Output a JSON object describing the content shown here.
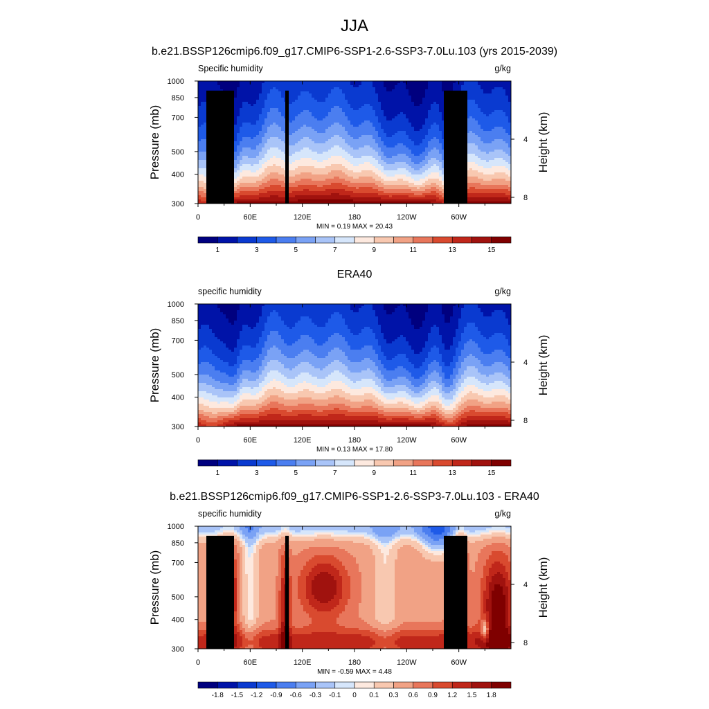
{
  "figure": {
    "title": "JJA",
    "model_title": "b.e21.BSSP126cmip6.f09_g17.CMIP6-SSP1-2.6-SSP3-7.0Lu.103 (yrs 2015-2039)",
    "obs_title": "ERA40",
    "diff_title": "b.e21.BSSP126cmip6.f09_g17.CMIP6-SSP1-2.6-SSP3-7.0Lu.103 - ERA40"
  },
  "chart_data": [
    {
      "type": "heatmap",
      "panel": "model",
      "variable_label": "Specific humidity",
      "units": "g/kg",
      "ylabel": "Pressure (mb)",
      "ylabel_right": "Height (km)",
      "x_ticks": [
        "0",
        "60E",
        "120E",
        "180",
        "120W",
        "60W"
      ],
      "x_tick_lon": [
        0,
        60,
        120,
        180,
        240,
        300
      ],
      "xlim": [
        0,
        360
      ],
      "y_ticks": [
        "300",
        "400",
        "500",
        "700",
        "850",
        "1000"
      ],
      "y_tick_p": [
        300,
        400,
        500,
        700,
        850,
        1000
      ],
      "ylim": [
        1000,
        300
      ],
      "height_ticks": [
        "8",
        "4"
      ],
      "height_tick_km": [
        8,
        4
      ],
      "stats": "MIN =  0.19  MAX =  20.43",
      "colorbar_labels": [
        "1",
        "3",
        "5",
        "7",
        "9",
        "11",
        "13",
        "15"
      ],
      "colorbar_levels": [
        1,
        2,
        3,
        4,
        5,
        6,
        7,
        8,
        9,
        10,
        11,
        12,
        13,
        14,
        15
      ],
      "colorbar_colors": [
        "#00007f",
        "#0013a8",
        "#0a3ad0",
        "#1e5ae8",
        "#4b7ef0",
        "#7aa2f5",
        "#a9c4f8",
        "#d6e6fb",
        "#fde9df",
        "#f8c8b0",
        "#f1a285",
        "#e8765b",
        "#d94a2f",
        "#c0271a",
        "#a0120e",
        "#7f0000"
      ],
      "topography": true
    },
    {
      "type": "heatmap",
      "panel": "obs",
      "variable_label": "specific humidity",
      "units": "g/kg",
      "ylabel": "Pressure (mb)",
      "ylabel_right": "Height (km)",
      "x_ticks": [
        "0",
        "60E",
        "120E",
        "180",
        "120W",
        "60W"
      ],
      "x_tick_lon": [
        0,
        60,
        120,
        180,
        240,
        300
      ],
      "xlim": [
        0,
        360
      ],
      "y_ticks": [
        "300",
        "400",
        "500",
        "700",
        "850",
        "1000"
      ],
      "y_tick_p": [
        300,
        400,
        500,
        700,
        850,
        1000
      ],
      "ylim": [
        1000,
        300
      ],
      "height_ticks": [
        "8",
        "4"
      ],
      "height_tick_km": [
        8,
        4
      ],
      "stats": "MIN =  0.13  MAX =  17.80",
      "colorbar_labels": [
        "1",
        "3",
        "5",
        "7",
        "9",
        "11",
        "13",
        "15"
      ],
      "colorbar_levels": [
        1,
        2,
        3,
        4,
        5,
        6,
        7,
        8,
        9,
        10,
        11,
        12,
        13,
        14,
        15
      ],
      "colorbar_colors": [
        "#00007f",
        "#0013a8",
        "#0a3ad0",
        "#1e5ae8",
        "#4b7ef0",
        "#7aa2f5",
        "#a9c4f8",
        "#d6e6fb",
        "#fde9df",
        "#f8c8b0",
        "#f1a285",
        "#e8765b",
        "#d94a2f",
        "#c0271a",
        "#a0120e",
        "#7f0000"
      ],
      "topography": false
    },
    {
      "type": "heatmap",
      "panel": "diff",
      "variable_label": "specific humidity",
      "units": "g/kg",
      "ylabel": "Pressure (mb)",
      "ylabel_right": "Height (km)",
      "x_ticks": [
        "0",
        "60E",
        "120E",
        "180",
        "120W",
        "60W"
      ],
      "x_tick_lon": [
        0,
        60,
        120,
        180,
        240,
        300
      ],
      "xlim": [
        0,
        360
      ],
      "y_ticks": [
        "300",
        "400",
        "500",
        "700",
        "850",
        "1000"
      ],
      "y_tick_p": [
        300,
        400,
        500,
        700,
        850,
        1000
      ],
      "ylim": [
        1000,
        300
      ],
      "height_ticks": [
        "8",
        "4"
      ],
      "height_tick_km": [
        8,
        4
      ],
      "stats": "MIN = -0.59  MAX =  4.48",
      "colorbar_labels": [
        "-1.8",
        "-1.5",
        "-1.2",
        "-0.9",
        "-0.6",
        "-0.3",
        "-0.1",
        "0",
        "0.1",
        "0.3",
        "0.6",
        "0.9",
        "1.2",
        "1.5",
        "1.8"
      ],
      "colorbar_levels": [
        -1.8,
        -1.5,
        -1.2,
        -0.9,
        -0.6,
        -0.3,
        -0.1,
        0,
        0.1,
        0.3,
        0.6,
        0.9,
        1.2,
        1.5,
        1.8
      ],
      "colorbar_colors": [
        "#00007f",
        "#0013a8",
        "#0a3ad0",
        "#1e5ae8",
        "#4b7ef0",
        "#7aa2f5",
        "#a9c4f8",
        "#d6e6fb",
        "#fde9df",
        "#f8c8b0",
        "#f1a285",
        "#e8765b",
        "#d94a2f",
        "#c0271a",
        "#a0120e",
        "#7f0000"
      ],
      "topography": true
    }
  ]
}
